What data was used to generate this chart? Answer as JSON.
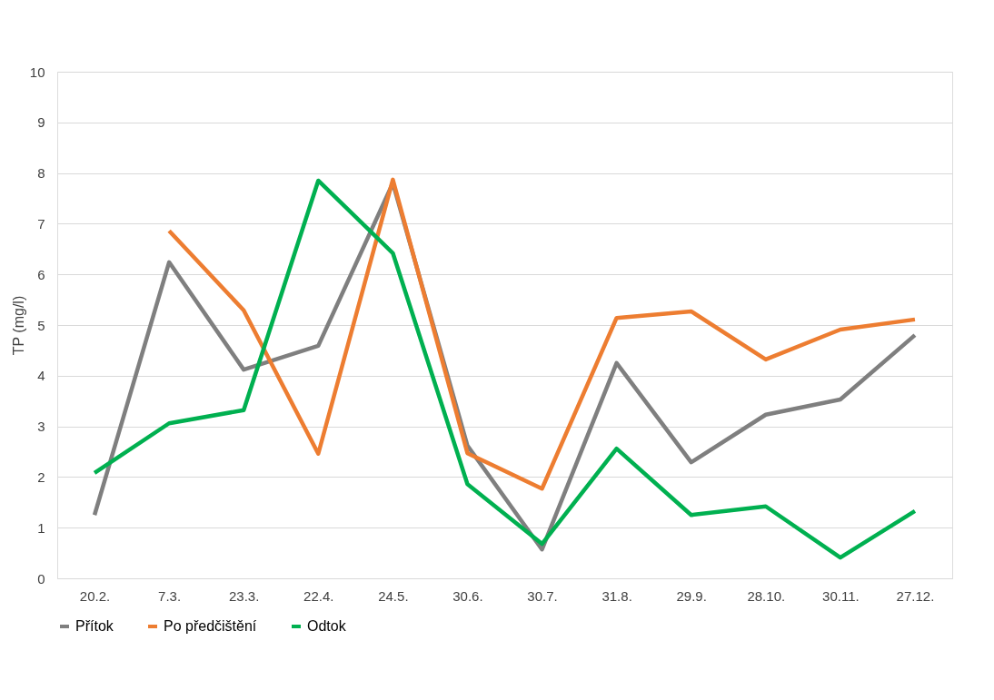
{
  "chart_data": {
    "type": "line",
    "ylabel": "TP (mg/l)",
    "categories": [
      "20.2.",
      "7.3.",
      "23.3.",
      "22.4.",
      "24.5.",
      "30.6.",
      "30.7.",
      "31.8.",
      "29.9.",
      "28.10.",
      "30.11.",
      "27.12."
    ],
    "series": [
      {
        "name": "Přítok",
        "color": "#7f7f7f",
        "values": [
          1.25,
          6.24,
          4.12,
          4.59,
          7.8,
          2.62,
          0.57,
          4.25,
          2.29,
          3.23,
          3.53,
          4.8
        ]
      },
      {
        "name": "Po předčištění",
        "color": "#ed7d31",
        "values": [
          null,
          6.86,
          5.29,
          2.46,
          7.87,
          2.47,
          1.77,
          5.14,
          5.27,
          4.32,
          4.91,
          5.11
        ]
      },
      {
        "name": "Odtok",
        "color": "#00b050",
        "values": [
          2.08,
          3.06,
          3.32,
          7.85,
          6.42,
          1.86,
          0.68,
          2.56,
          1.25,
          1.42,
          0.41,
          1.33
        ]
      }
    ],
    "ylim": [
      0,
      10
    ],
    "yticks": [
      0,
      1,
      2,
      3,
      4,
      5,
      6,
      7,
      8,
      9,
      10
    ],
    "grid": "y",
    "legend": "bottom",
    "marker": "none",
    "line_style": "solid"
  }
}
